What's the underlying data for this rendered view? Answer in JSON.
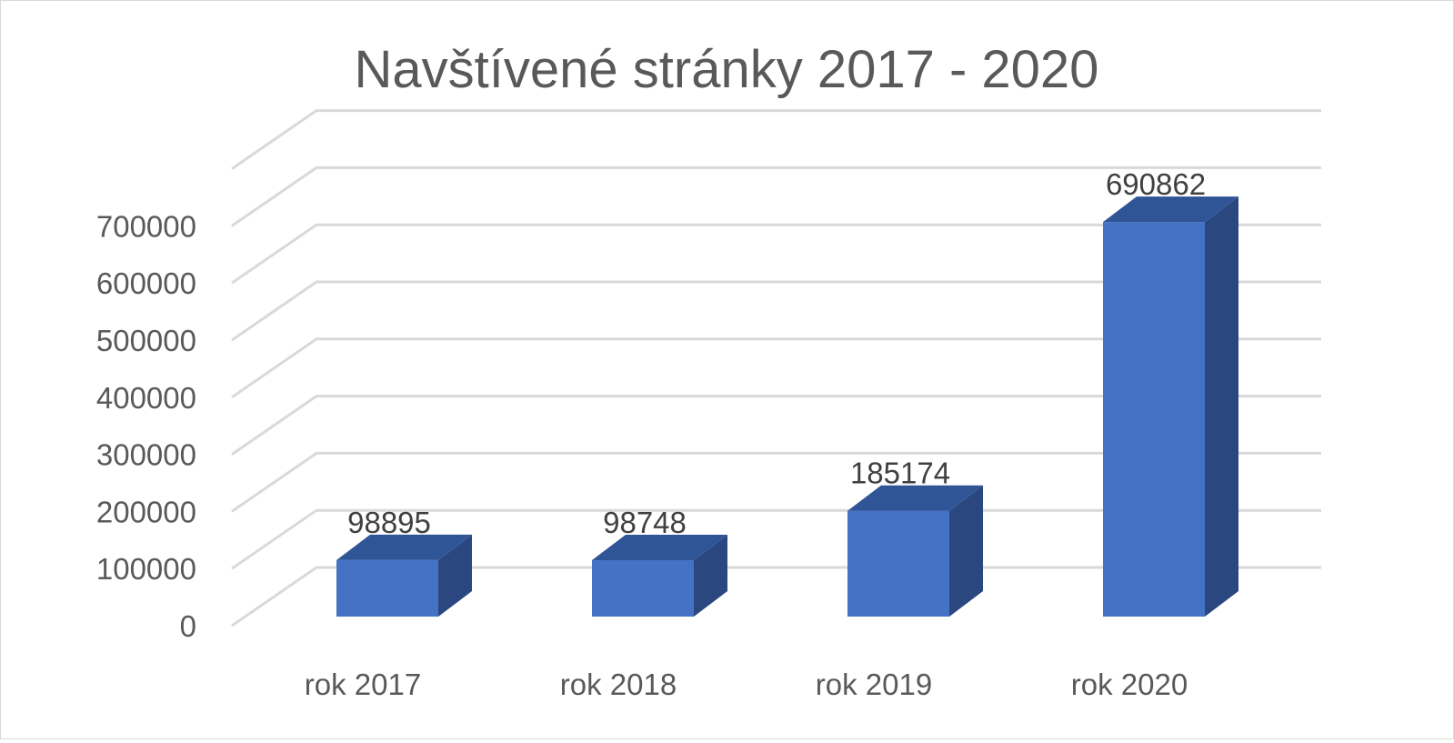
{
  "chart_data": {
    "type": "bar",
    "style": "3d-column",
    "title": "Navštívené stránky 2017 - 2020",
    "xlabel": "",
    "ylabel": "",
    "categories": [
      "rok 2017",
      "rok 2018",
      "rok 2019",
      "rok 2020"
    ],
    "values": [
      98895,
      98748,
      185174,
      690862
    ],
    "data_labels": [
      "98895",
      "98748",
      "185174",
      "690862"
    ],
    "yticks": [
      "0",
      "100000",
      "200000",
      "300000",
      "400000",
      "500000",
      "600000",
      "700000"
    ],
    "ylim": [
      0,
      800000
    ],
    "grid": true,
    "legend": "none",
    "colors": {
      "bar_front": "#4472c4",
      "bar_top": "#2f5597",
      "bar_side": "#2a4780",
      "grid": "#d9d9d9",
      "title": "#595959",
      "tick": "#595959",
      "data_label": "#404040"
    }
  }
}
